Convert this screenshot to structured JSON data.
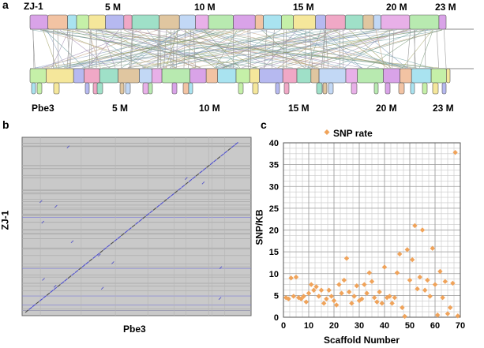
{
  "panel_a": {
    "letter": "a",
    "top_genome": "ZJ-1",
    "bottom_genome": "Pbe3",
    "top_ticks": [
      "5 M",
      "10 M",
      "15 M",
      "20 M",
      "23 M"
    ],
    "bottom_ticks": [
      "5 M",
      "10 M",
      "15 M",
      "20 M",
      "23 M"
    ]
  },
  "panel_b": {
    "letter": "b",
    "ylabel": "ZJ-1",
    "xlabel": "Pbe3"
  },
  "panel_c": {
    "letter": "c"
  },
  "chart_data": [
    {
      "type": "scatter",
      "title": "",
      "xlabel": "Scaffold Number",
      "ylabel": "SNP/KB",
      "xlim": [
        0,
        70
      ],
      "ylim": [
        0,
        40
      ],
      "xticks": [
        "0",
        "10",
        "20",
        "30",
        "40",
        "50",
        "60",
        "70"
      ],
      "yticks": [
        "0",
        "5",
        "10",
        "15",
        "20",
        "25",
        "30",
        "35",
        "40"
      ],
      "grid": true,
      "legend_position": "top-left",
      "series": [
        {
          "name": "SNP rate",
          "color": "#f0a35a",
          "x": [
            1,
            2,
            3,
            4,
            5,
            6,
            7,
            8,
            9,
            10,
            11,
            12,
            13,
            14,
            15,
            16,
            17,
            18,
            19,
            20,
            21,
            22,
            23,
            24,
            25,
            26,
            27,
            28,
            29,
            30,
            31,
            32,
            33,
            34,
            35,
            36,
            37,
            38,
            39,
            40,
            41,
            42,
            43,
            44,
            45,
            46,
            47,
            48,
            49,
            50,
            51,
            52,
            53,
            54,
            55,
            56,
            57,
            58,
            59,
            60,
            61,
            62,
            63,
            64,
            65,
            66,
            67,
            68,
            69
          ],
          "y": [
            4.5,
            4.2,
            9,
            4.8,
            9.2,
            4.5,
            4.2,
            4.8,
            3.5,
            5.5,
            7.5,
            6.2,
            7,
            4.8,
            6.2,
            3.2,
            4.2,
            6.2,
            4.8,
            3.8,
            2.8,
            7.5,
            5.5,
            8.5,
            13.5,
            5.8,
            3.2,
            4.8,
            7.2,
            3.8,
            4.2,
            7.5,
            5.5,
            10.2,
            8.2,
            4.5,
            3.5,
            5.8,
            3.2,
            11.5,
            4.5,
            4.8,
            3.2,
            4.5,
            10.2,
            14.5,
            2.2,
            0.2,
            15.5,
            8.5,
            13.2,
            21,
            6.5,
            9.2,
            20,
            6.2,
            8.5,
            4.8,
            15.8,
            7.5,
            0.5,
            10.5,
            4.5,
            8.2,
            0.8,
            2.2,
            7.8,
            37.8,
            0.3
          ]
        }
      ]
    }
  ]
}
